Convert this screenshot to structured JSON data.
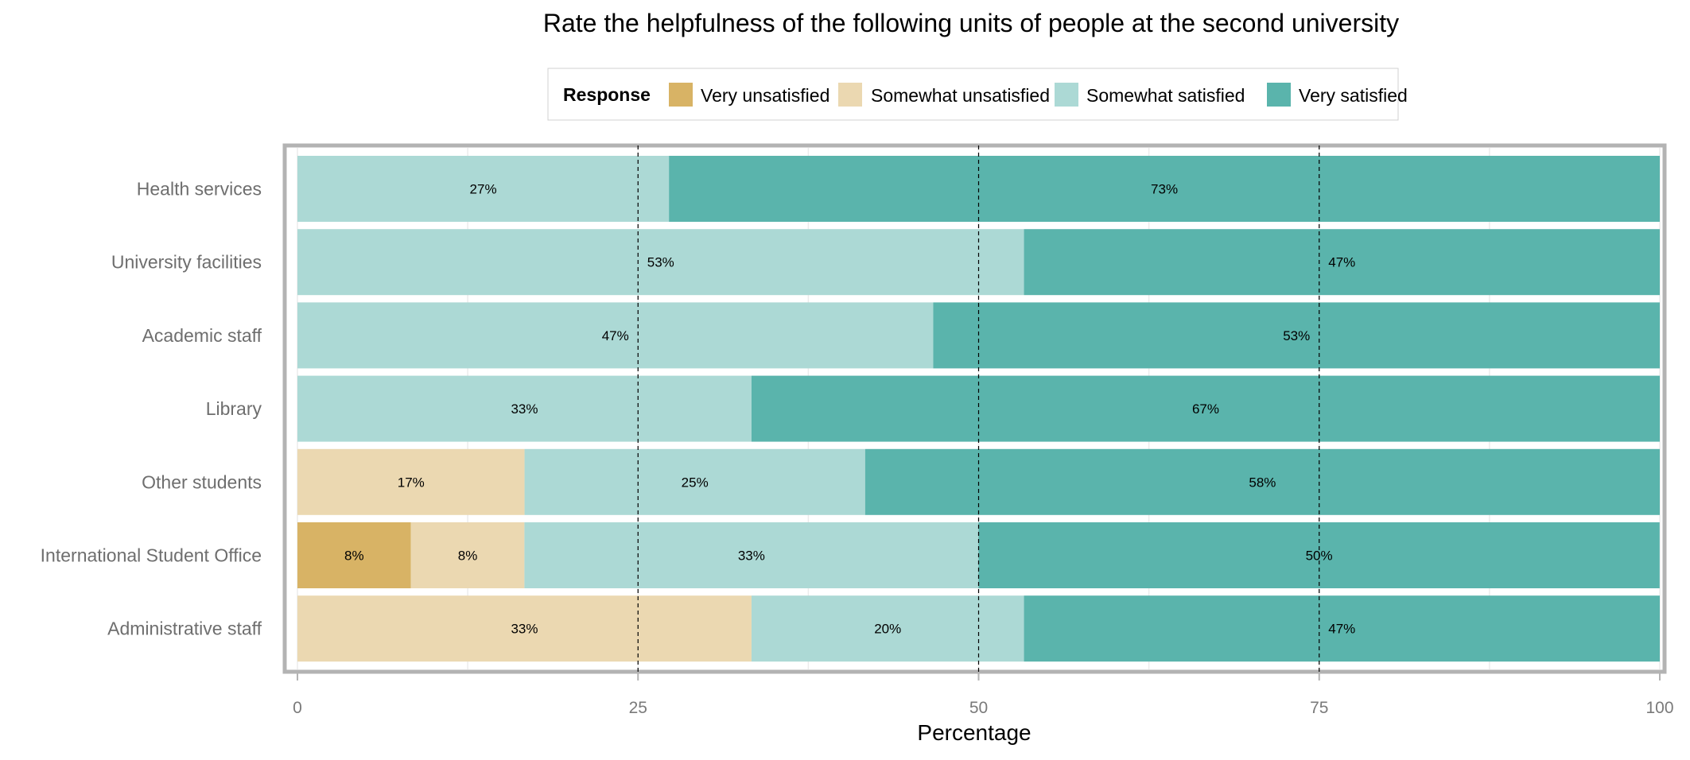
{
  "chart_data": {
    "type": "bar",
    "orientation": "horizontal",
    "stacked": true,
    "title": "Rate the helpfulness of the following units of people at the second university",
    "xlabel": "Percentage",
    "ylabel": "",
    "xlim": [
      0,
      100
    ],
    "x_ticks": [
      "0",
      "25",
      "50",
      "75",
      "100"
    ],
    "reference_lines": [
      25,
      50,
      75
    ],
    "grid": true,
    "legend": {
      "title": "Response",
      "placement": "top-center",
      "entries": [
        {
          "name": "Very unsatisfied",
          "color": "#d8b365"
        },
        {
          "name": "Somewhat unsatisfied",
          "color": "#ebd8b1"
        },
        {
          "name": "Somewhat satisfied",
          "color": "#acd9d5"
        },
        {
          "name": "Very satisfied",
          "color": "#5ab4ac"
        }
      ]
    },
    "categories": [
      "Health services",
      "University facilities",
      "Academic staff",
      "Library",
      "Other students",
      "International Student Office",
      "Administrative staff"
    ],
    "series": [
      {
        "name": "Very unsatisfied",
        "values": [
          0,
          0,
          0,
          0,
          0,
          8.33,
          0
        ]
      },
      {
        "name": "Somewhat unsatisfied",
        "values": [
          0,
          0,
          0,
          0,
          16.67,
          8.33,
          33.33
        ]
      },
      {
        "name": "Somewhat satisfied",
        "values": [
          27.27,
          53.33,
          46.67,
          33.33,
          25,
          33.33,
          20
        ]
      },
      {
        "name": "Very satisfied",
        "values": [
          72.73,
          46.67,
          53.33,
          66.67,
          58.33,
          50,
          46.67
        ]
      }
    ],
    "data_labels": [
      [
        "",
        "",
        "27%",
        "73%"
      ],
      [
        "",
        "",
        "53%",
        "47%"
      ],
      [
        "",
        "",
        "47%",
        "53%"
      ],
      [
        "",
        "",
        "33%",
        "67%"
      ],
      [
        "",
        "17%",
        "25%",
        "58%"
      ],
      [
        "8%",
        "8%",
        "33%",
        "50%"
      ],
      [
        "",
        "33%",
        "20%",
        "47%"
      ]
    ]
  }
}
